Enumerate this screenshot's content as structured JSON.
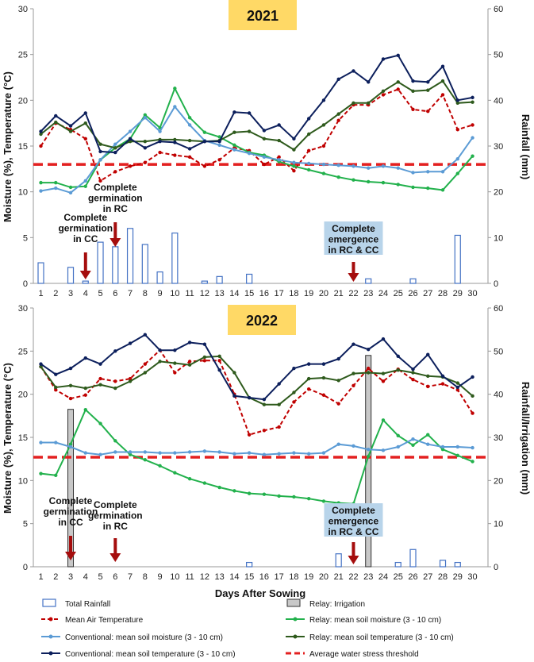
{
  "colors": {
    "rain": "#4472c4",
    "irrigation_fill": "#c8c8c8",
    "air_temp": "#c00000",
    "relay_moisture": "#22b14c",
    "conv_moisture": "#5b9bd5",
    "relay_temp": "#2e5a1c",
    "conv_temp": "#0c1f5c",
    "threshold": "#e32020",
    "arrow": "#a50d0d",
    "year_box": "#ffd966",
    "emergence_box": "#b8d4ea"
  },
  "x_axis_label": "Days After Sowing",
  "legend": [
    {
      "label": "Total Rainfall",
      "kind": "bar"
    },
    {
      "label": "Relay: Irrigation",
      "kind": "irr"
    },
    {
      "label": "Mean Air Temperature",
      "kind": "air"
    },
    {
      "label": "Relay: mean soil moisture (3 - 10 cm)",
      "kind": "rm"
    },
    {
      "label": "Conventional: mean soil moisture (3 - 10 cm)",
      "kind": "cm"
    },
    {
      "label": "Relay: mean soil temperature (3 - 10 cm)",
      "kind": "rt"
    },
    {
      "label": "Conventional: mean soil temperature (3 - 10 cm)",
      "kind": "ct"
    },
    {
      "label": "Average water stress threshold",
      "kind": "thr"
    }
  ],
  "chart_data": [
    {
      "type": "line",
      "title": "2021",
      "ylabel": "Moisture (%), Temperature (°C)",
      "y2label": "Rainfall (mm)",
      "ylim": [
        0,
        30
      ],
      "y2lim": [
        0,
        60
      ],
      "yticks": [
        0,
        5,
        10,
        15,
        20,
        25,
        30
      ],
      "y2ticks": [
        0,
        10,
        20,
        30,
        40,
        50,
        60
      ],
      "x": [
        1,
        2,
        3,
        4,
        5,
        6,
        7,
        8,
        9,
        10,
        11,
        12,
        13,
        14,
        15,
        16,
        17,
        18,
        19,
        20,
        21,
        22,
        23,
        24,
        25,
        26,
        27,
        28,
        29,
        30
      ],
      "rainfall": [
        4.5,
        0,
        3.5,
        0.5,
        9,
        8,
        12,
        8.5,
        2.5,
        11,
        0,
        0.5,
        1.5,
        0,
        2,
        0,
        0,
        0,
        0,
        0,
        0,
        0,
        1,
        0,
        0,
        1,
        0,
        0,
        10.5,
        0
      ],
      "irrigation": [],
      "threshold": 13,
      "series": [
        {
          "name": "Mean Air Temperature",
          "key": "air",
          "values": [
            15,
            17.5,
            16.8,
            15.8,
            11.2,
            12.2,
            12.8,
            13.2,
            14.3,
            14,
            13.8,
            12.8,
            13.5,
            14.8,
            14.5,
            13,
            13.8,
            12.3,
            14.5,
            15,
            17.8,
            19.5,
            19.5,
            20.6,
            21.2,
            19,
            18.8,
            20.6,
            16.8,
            17.3
          ]
        },
        {
          "name": "Relay: mean soil moisture (3 - 10 cm)",
          "key": "rm",
          "values": [
            11,
            11,
            10.5,
            10.6,
            13.5,
            14.8,
            15.8,
            18.4,
            17,
            21.3,
            18.1,
            16.5,
            16,
            15.1,
            14.3,
            14,
            13.3,
            12.8,
            12.4,
            12,
            11.6,
            11.3,
            11.1,
            11,
            10.8,
            10.5,
            10.4,
            10.2,
            12,
            13.9
          ]
        },
        {
          "name": "Conventional: mean soil moisture (3 - 10 cm)",
          "key": "cm",
          "values": [
            10.1,
            10.4,
            9.9,
            11.2,
            13.5,
            15.2,
            16.6,
            18.1,
            16.6,
            19.3,
            17.3,
            15.6,
            15.1,
            14.6,
            14.2,
            13.8,
            13.5,
            13.2,
            13.1,
            13,
            12.9,
            12.8,
            12.6,
            12.8,
            12.6,
            12.1,
            12.2,
            12.2,
            13.6,
            15.9
          ]
        },
        {
          "name": "Relay: mean soil temperature (3 - 10 cm)",
          "key": "rt",
          "values": [
            16.3,
            17.6,
            16.6,
            17.5,
            15.2,
            14.8,
            15.5,
            15.5,
            15.7,
            15.7,
            15.6,
            15.5,
            15.6,
            16.5,
            16.6,
            15.8,
            15.6,
            14.6,
            16.3,
            17.3,
            18.5,
            19.7,
            19.7,
            21,
            22,
            21,
            21.1,
            22.1,
            19.7,
            19.8
          ]
        },
        {
          "name": "Conventional: mean soil temperature (3 - 10 cm)",
          "key": "ct",
          "values": [
            16.6,
            18.3,
            17.2,
            18.6,
            14.4,
            14.3,
            15.8,
            14.8,
            15.5,
            15.4,
            14.7,
            15.5,
            15.5,
            18.7,
            18.6,
            16.7,
            17.3,
            15.8,
            18,
            20,
            22.3,
            23.2,
            22,
            24.5,
            24.9,
            22.1,
            22,
            23.7,
            20,
            20.3
          ]
        }
      ],
      "annotations": [
        {
          "text": [
            "Complete",
            "germination",
            "in CC"
          ],
          "day": 4,
          "boxed": false
        },
        {
          "text": [
            "Complete",
            "germination",
            "in RC"
          ],
          "day": 6,
          "boxed": false
        },
        {
          "text": [
            "Complete",
            "emergence",
            "in RC & CC"
          ],
          "day": 22,
          "boxed": true
        }
      ]
    },
    {
      "type": "line",
      "title": "2022",
      "ylabel": "Moisture (%), Temperature (°C)",
      "y2label": "Rainfall/Irrigation (mm)",
      "ylim": [
        0,
        30
      ],
      "y2lim": [
        0,
        60
      ],
      "yticks": [
        0,
        5,
        10,
        15,
        20,
        25,
        30
      ],
      "y2ticks": [
        0,
        10,
        20,
        30,
        40,
        50,
        60
      ],
      "x": [
        1,
        2,
        3,
        4,
        5,
        6,
        7,
        8,
        9,
        10,
        11,
        12,
        13,
        14,
        15,
        16,
        17,
        18,
        19,
        20,
        21,
        22,
        23,
        24,
        25,
        26,
        27,
        28,
        29,
        30
      ],
      "rainfall": [
        0,
        0,
        0,
        0,
        0,
        0,
        0,
        0,
        0,
        0,
        0,
        0,
        0,
        0,
        1,
        0,
        0,
        0,
        0,
        0,
        3,
        0,
        0,
        0,
        1,
        4,
        0,
        1.5,
        1,
        0
      ],
      "irrigation": [
        {
          "day": 3,
          "value": 36.5
        },
        {
          "day": 23,
          "value": 49
        }
      ],
      "threshold": 12.7,
      "series": [
        {
          "name": "Mean Air Temperature",
          "key": "air",
          "values": [
            23.2,
            20.5,
            19.5,
            19.9,
            21.8,
            21.5,
            21.8,
            23.5,
            25.1,
            22.5,
            23.8,
            23.9,
            23.9,
            20,
            15.3,
            15.8,
            16.2,
            19.1,
            20.6,
            19.9,
            18.9,
            21,
            23,
            21.5,
            22.9,
            21.7,
            20.9,
            21.2,
            20.5,
            17.8
          ]
        },
        {
          "name": "Relay: mean soil moisture (3 - 10 cm)",
          "key": "rm",
          "values": [
            10.8,
            10.6,
            14.2,
            18.2,
            16.6,
            14.6,
            13,
            12.4,
            11.7,
            10.9,
            10.2,
            9.7,
            9.2,
            8.8,
            8.5,
            8.4,
            8.2,
            8.1,
            7.9,
            7.6,
            7.4,
            7.3,
            12.8,
            17,
            15.2,
            14.1,
            15.3,
            13.6,
            12.9,
            12.2
          ]
        },
        {
          "name": "Conventional: mean soil moisture (3 - 10 cm)",
          "key": "cm",
          "values": [
            14.4,
            14.4,
            13.9,
            13.2,
            13,
            13.3,
            13.3,
            13.3,
            13.2,
            13.2,
            13.3,
            13.4,
            13.3,
            13.1,
            13.2,
            13,
            13.1,
            13.2,
            13.1,
            13.2,
            14.2,
            14,
            13.6,
            13.5,
            13.9,
            14.8,
            14.2,
            13.9,
            13.9,
            13.8
          ]
        },
        {
          "name": "Relay: mean soil temperature (3 - 10 cm)",
          "key": "rt",
          "values": [
            23.2,
            20.8,
            21,
            20.7,
            21.1,
            20.7,
            21.5,
            22.5,
            23.8,
            23.6,
            23.4,
            24.3,
            24.4,
            22.5,
            19.6,
            18.8,
            18.8,
            20.2,
            21.8,
            21.9,
            21.6,
            22.4,
            22.5,
            22.4,
            22.8,
            22.5,
            22.1,
            22,
            21.3,
            19.8
          ]
        },
        {
          "name": "Conventional: mean soil temperature (3 - 10 cm)",
          "key": "ct",
          "values": [
            23.5,
            22.3,
            23,
            24.2,
            23.5,
            25,
            25.9,
            26.9,
            25.1,
            25.1,
            26,
            25.8,
            22.8,
            19.8,
            19.6,
            19.4,
            21.2,
            23,
            23.5,
            23.5,
            24.1,
            25.8,
            25.2,
            26.4,
            24.4,
            22.9,
            24.6,
            22.1,
            20.8,
            22
          ]
        }
      ],
      "annotations": [
        {
          "text": [
            "Complete",
            "germination",
            "in CC"
          ],
          "day": 3,
          "boxed": false
        },
        {
          "text": [
            "Complete",
            "germination",
            "in RC"
          ],
          "day": 6,
          "boxed": false
        },
        {
          "text": [
            "Complete",
            "emergence",
            "in RC & CC"
          ],
          "day": 22,
          "boxed": true
        }
      ]
    }
  ]
}
